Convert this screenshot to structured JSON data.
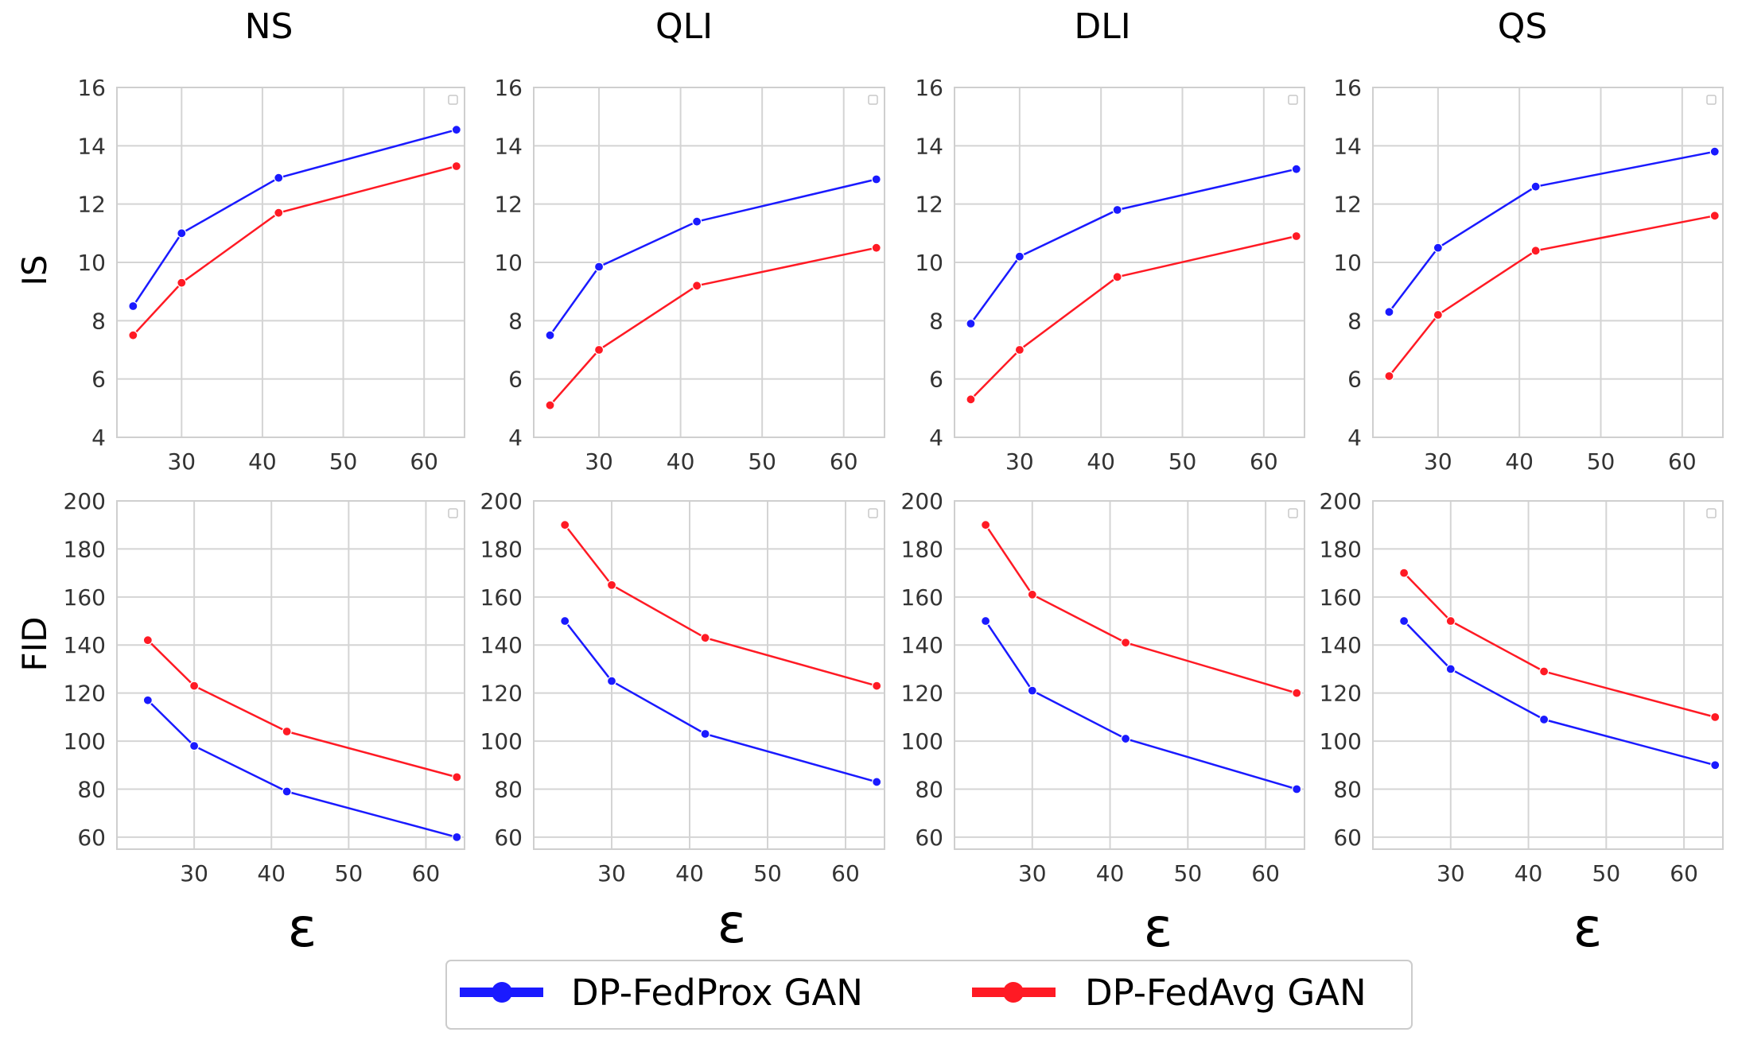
{
  "colors": {
    "blue": "#1a1aff",
    "red": "#ff1a24",
    "grid": "#d4d4d4",
    "frame": "#cfcfcf"
  },
  "row_labels": [
    "IS",
    "FID"
  ],
  "column_titles": [
    "NS",
    "QLI",
    "DLI",
    "QS"
  ],
  "x_axis_symbol": "ε",
  "legend": {
    "position": "bottom-center",
    "entries": [
      "DP-FedProx GAN",
      "DP-FedAvg GAN"
    ]
  },
  "chart_data": [
    {
      "type": "line",
      "title": "NS",
      "ylabel": "IS",
      "xlabel": "ε",
      "xlim": [
        22,
        65
      ],
      "ylim": [
        4,
        16
      ],
      "xticks": [
        30,
        40,
        50,
        60
      ],
      "yticks": [
        4,
        6,
        8,
        10,
        12,
        14,
        16
      ],
      "grid": true,
      "series": [
        {
          "name": "DP-FedProx GAN",
          "x": [
            24,
            30,
            42,
            64
          ],
          "y": [
            8.5,
            11.0,
            12.9,
            14.55
          ]
        },
        {
          "name": "DP-FedAvg GAN",
          "x": [
            24,
            30,
            42,
            64
          ],
          "y": [
            7.5,
            9.3,
            11.7,
            13.3
          ]
        }
      ]
    },
    {
      "type": "line",
      "title": "QLI",
      "ylabel": "",
      "xlabel": "ε",
      "xlim": [
        22,
        65
      ],
      "ylim": [
        4,
        16
      ],
      "xticks": [
        30,
        40,
        50,
        60
      ],
      "yticks": [
        4,
        6,
        8,
        10,
        12,
        14,
        16
      ],
      "grid": true,
      "series": [
        {
          "name": "DP-FedProx GAN",
          "x": [
            24,
            30,
            42,
            64
          ],
          "y": [
            7.5,
            9.85,
            11.4,
            12.85
          ]
        },
        {
          "name": "DP-FedAvg GAN",
          "x": [
            24,
            30,
            42,
            64
          ],
          "y": [
            5.1,
            7.0,
            9.2,
            10.5
          ]
        }
      ]
    },
    {
      "type": "line",
      "title": "DLI",
      "ylabel": "",
      "xlabel": "ε",
      "xlim": [
        22,
        65
      ],
      "ylim": [
        4,
        16
      ],
      "xticks": [
        30,
        40,
        50,
        60
      ],
      "yticks": [
        4,
        6,
        8,
        10,
        12,
        14,
        16
      ],
      "grid": true,
      "series": [
        {
          "name": "DP-FedProx GAN",
          "x": [
            24,
            30,
            42,
            64
          ],
          "y": [
            7.9,
            10.2,
            11.8,
            13.2
          ]
        },
        {
          "name": "DP-FedAvg GAN",
          "x": [
            24,
            30,
            42,
            64
          ],
          "y": [
            5.3,
            7.0,
            9.5,
            10.9
          ]
        }
      ]
    },
    {
      "type": "line",
      "title": "QS",
      "ylabel": "",
      "xlabel": "ε",
      "xlim": [
        22,
        65
      ],
      "ylim": [
        4,
        16
      ],
      "xticks": [
        30,
        40,
        50,
        60
      ],
      "yticks": [
        4,
        6,
        8,
        10,
        12,
        14,
        16
      ],
      "grid": true,
      "series": [
        {
          "name": "DP-FedProx GAN",
          "x": [
            24,
            30,
            42,
            64
          ],
          "y": [
            8.3,
            10.5,
            12.6,
            13.8
          ]
        },
        {
          "name": "DP-FedAvg GAN",
          "x": [
            24,
            30,
            42,
            64
          ],
          "y": [
            6.1,
            8.2,
            10.4,
            11.6
          ]
        }
      ]
    },
    {
      "type": "line",
      "title": "",
      "ylabel": "FID",
      "xlabel": "ε",
      "xlim": [
        20,
        65
      ],
      "ylim": [
        55,
        200
      ],
      "xticks": [
        30,
        40,
        50,
        60
      ],
      "yticks": [
        60,
        80,
        100,
        120,
        140,
        160,
        180,
        200
      ],
      "grid": true,
      "series": [
        {
          "name": "DP-FedProx GAN",
          "x": [
            24,
            30,
            42,
            64
          ],
          "y": [
            117,
            98,
            79,
            60
          ]
        },
        {
          "name": "DP-FedAvg GAN",
          "x": [
            24,
            30,
            42,
            64
          ],
          "y": [
            142,
            123,
            104,
            85
          ]
        }
      ]
    },
    {
      "type": "line",
      "title": "",
      "ylabel": "",
      "xlabel": "ε",
      "xlim": [
        20,
        65
      ],
      "ylim": [
        55,
        200
      ],
      "xticks": [
        30,
        40,
        50,
        60
      ],
      "yticks": [
        60,
        80,
        100,
        120,
        140,
        160,
        180,
        200
      ],
      "grid": true,
      "series": [
        {
          "name": "DP-FedProx GAN",
          "x": [
            24,
            30,
            42,
            64
          ],
          "y": [
            150,
            125,
            103,
            83
          ]
        },
        {
          "name": "DP-FedAvg GAN",
          "x": [
            24,
            30,
            42,
            64
          ],
          "y": [
            190,
            165,
            143,
            123
          ]
        }
      ]
    },
    {
      "type": "line",
      "title": "",
      "ylabel": "",
      "xlabel": "ε",
      "xlim": [
        20,
        65
      ],
      "ylim": [
        55,
        200
      ],
      "xticks": [
        30,
        40,
        50,
        60
      ],
      "yticks": [
        60,
        80,
        100,
        120,
        140,
        160,
        180,
        200
      ],
      "grid": true,
      "series": [
        {
          "name": "DP-FedProx GAN",
          "x": [
            24,
            30,
            42,
            64
          ],
          "y": [
            150,
            121,
            101,
            80
          ]
        },
        {
          "name": "DP-FedAvg GAN",
          "x": [
            24,
            30,
            42,
            64
          ],
          "y": [
            190,
            161,
            141,
            120
          ]
        }
      ]
    },
    {
      "type": "line",
      "title": "",
      "ylabel": "",
      "xlabel": "ε",
      "xlim": [
        20,
        65
      ],
      "ylim": [
        55,
        200
      ],
      "xticks": [
        30,
        40,
        50,
        60
      ],
      "yticks": [
        60,
        80,
        100,
        120,
        140,
        160,
        180,
        200
      ],
      "grid": true,
      "series": [
        {
          "name": "DP-FedProx GAN",
          "x": [
            24,
            30,
            42,
            64
          ],
          "y": [
            150,
            130,
            109,
            90
          ]
        },
        {
          "name": "DP-FedAvg GAN",
          "x": [
            24,
            30,
            42,
            64
          ],
          "y": [
            170,
            150,
            129,
            110
          ]
        }
      ]
    }
  ]
}
